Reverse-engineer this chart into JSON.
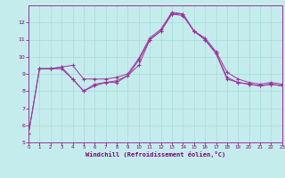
{
  "xlabel": "Windchill (Refroidissement éolien,°C)",
  "bg_color": "#c5eced",
  "grid_color": "#a8d8d8",
  "line_color": "#993399",
  "xlim": [
    0,
    23
  ],
  "ylim": [
    5,
    13
  ],
  "yticks": [
    5,
    6,
    7,
    8,
    9,
    10,
    11,
    12
  ],
  "xticks": [
    0,
    1,
    2,
    3,
    4,
    5,
    6,
    7,
    8,
    9,
    10,
    11,
    12,
    13,
    14,
    15,
    16,
    17,
    18,
    19,
    20,
    21,
    22,
    23
  ],
  "line1_x": [
    0,
    1,
    2,
    3,
    4,
    5,
    6,
    7,
    8,
    9,
    10,
    11,
    12,
    13,
    14,
    15,
    16,
    17,
    18,
    19,
    20,
    21,
    22,
    23
  ],
  "line1_y": [
    5.5,
    9.3,
    9.3,
    9.3,
    8.7,
    8.0,
    8.4,
    8.5,
    8.5,
    8.9,
    9.8,
    11.0,
    11.5,
    12.5,
    12.4,
    11.5,
    11.0,
    10.2,
    8.8,
    8.5,
    8.4,
    8.3,
    8.4,
    8.3
  ],
  "line2_x": [
    0,
    1,
    2,
    3,
    4,
    5,
    6,
    7,
    8,
    9,
    10,
    11,
    12,
    13,
    14,
    15,
    16,
    17,
    18,
    19,
    20,
    21,
    22,
    23
  ],
  "line2_y": [
    5.5,
    9.3,
    9.3,
    9.4,
    9.5,
    8.7,
    8.7,
    8.7,
    8.8,
    9.0,
    9.9,
    11.1,
    11.6,
    12.6,
    12.5,
    11.5,
    11.1,
    10.3,
    9.1,
    8.7,
    8.5,
    8.4,
    8.5,
    8.4
  ],
  "line3_x": [
    1,
    2,
    3,
    4,
    5,
    6,
    7,
    8,
    9,
    10,
    11,
    12,
    13,
    14,
    15,
    16,
    17,
    18,
    19,
    20,
    21,
    22,
    23
  ],
  "line3_y": [
    9.3,
    9.3,
    9.4,
    8.7,
    8.0,
    8.3,
    8.5,
    8.6,
    8.9,
    9.5,
    11.0,
    11.5,
    12.5,
    12.5,
    11.5,
    11.0,
    10.2,
    8.7,
    8.5,
    8.4,
    8.3,
    8.4,
    8.3
  ]
}
